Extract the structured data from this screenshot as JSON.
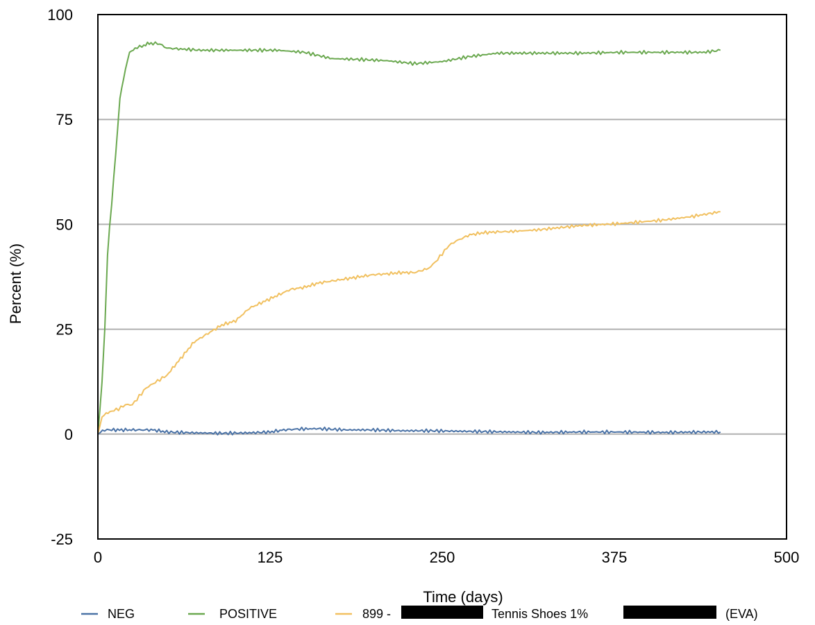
{
  "chart_data": {
    "type": "line",
    "title": "",
    "xlabel": "Time (days)",
    "ylabel": "Percent (%)",
    "xlim": [
      0,
      500
    ],
    "ylim": [
      -25,
      100
    ],
    "x_ticks": [
      0,
      125,
      250,
      375,
      500
    ],
    "y_ticks": [
      -25,
      0,
      25,
      50,
      75,
      100
    ],
    "x_tick_labels": [
      "0",
      "125",
      "250",
      "375",
      "500"
    ],
    "y_tick_labels": [
      "-25",
      "0",
      "25",
      "50",
      "75",
      "100"
    ],
    "gridlines": "horizontal",
    "legend_position": "bottom",
    "series": [
      {
        "name": "NEG",
        "color": "#4a72a6",
        "x": [
          0,
          5,
          10,
          20,
          30,
          40,
          50,
          70,
          90,
          110,
          125,
          135,
          145,
          160,
          180,
          200,
          220,
          240,
          260,
          280,
          300,
          320,
          350,
          380,
          410,
          440,
          452
        ],
        "y": [
          0,
          1,
          1,
          1,
          1,
          1,
          0.5,
          0.3,
          0.2,
          0.3,
          0.5,
          1,
          1.2,
          1.3,
          1,
          1,
          0.8,
          0.8,
          0.7,
          0.6,
          0.5,
          0.4,
          0.5,
          0.5,
          0.4,
          0.5,
          0.5
        ]
      },
      {
        "name": "POSITIVE",
        "color": "#6aa84f",
        "x": [
          0,
          3,
          5,
          7,
          10,
          13,
          16,
          20,
          23,
          27,
          32,
          36,
          40,
          45,
          50,
          60,
          75,
          90,
          110,
          130,
          150,
          170,
          190,
          210,
          230,
          250,
          270,
          290,
          320,
          350,
          380,
          410,
          440,
          452
        ],
        "y": [
          0,
          12,
          25,
          43,
          55,
          67,
          80,
          87,
          91,
          92,
          92.5,
          93,
          93.2,
          93,
          92,
          91.8,
          91.5,
          91.5,
          91.5,
          91.5,
          91,
          89.5,
          89.3,
          89,
          88.3,
          88.8,
          90,
          90.8,
          90.8,
          90.8,
          91,
          91,
          91,
          91.5
        ]
      },
      {
        "name": "899 - Tennis Shoes 1% (EVA)",
        "color": "#f1c05f",
        "x": [
          0,
          3,
          6,
          10,
          15,
          20,
          25,
          30,
          35,
          40,
          45,
          50,
          60,
          70,
          80,
          90,
          100,
          110,
          120,
          130,
          140,
          150,
          160,
          170,
          180,
          190,
          200,
          210,
          220,
          230,
          240,
          245,
          250,
          255,
          260,
          270,
          280,
          290,
          300,
          320,
          350,
          380,
          410,
          430,
          452
        ],
        "y": [
          0,
          4,
          5,
          5.5,
          6,
          7,
          7,
          9,
          11,
          12,
          13,
          14,
          18,
          22,
          24,
          26,
          27,
          30,
          31.5,
          33,
          34.5,
          35,
          36,
          36.5,
          37,
          37.5,
          38,
          38.2,
          38.5,
          38.5,
          39.5,
          41,
          43,
          45,
          46,
          47.5,
          48,
          48.2,
          48.3,
          48.7,
          49.7,
          50.2,
          51,
          51.8,
          53
        ]
      }
    ],
    "legend_labels": [
      "NEG",
      "POSITIVE",
      "899 -",
      "Tennis Shoes 1%",
      "(EVA)"
    ],
    "redaction_color": "#000000"
  }
}
